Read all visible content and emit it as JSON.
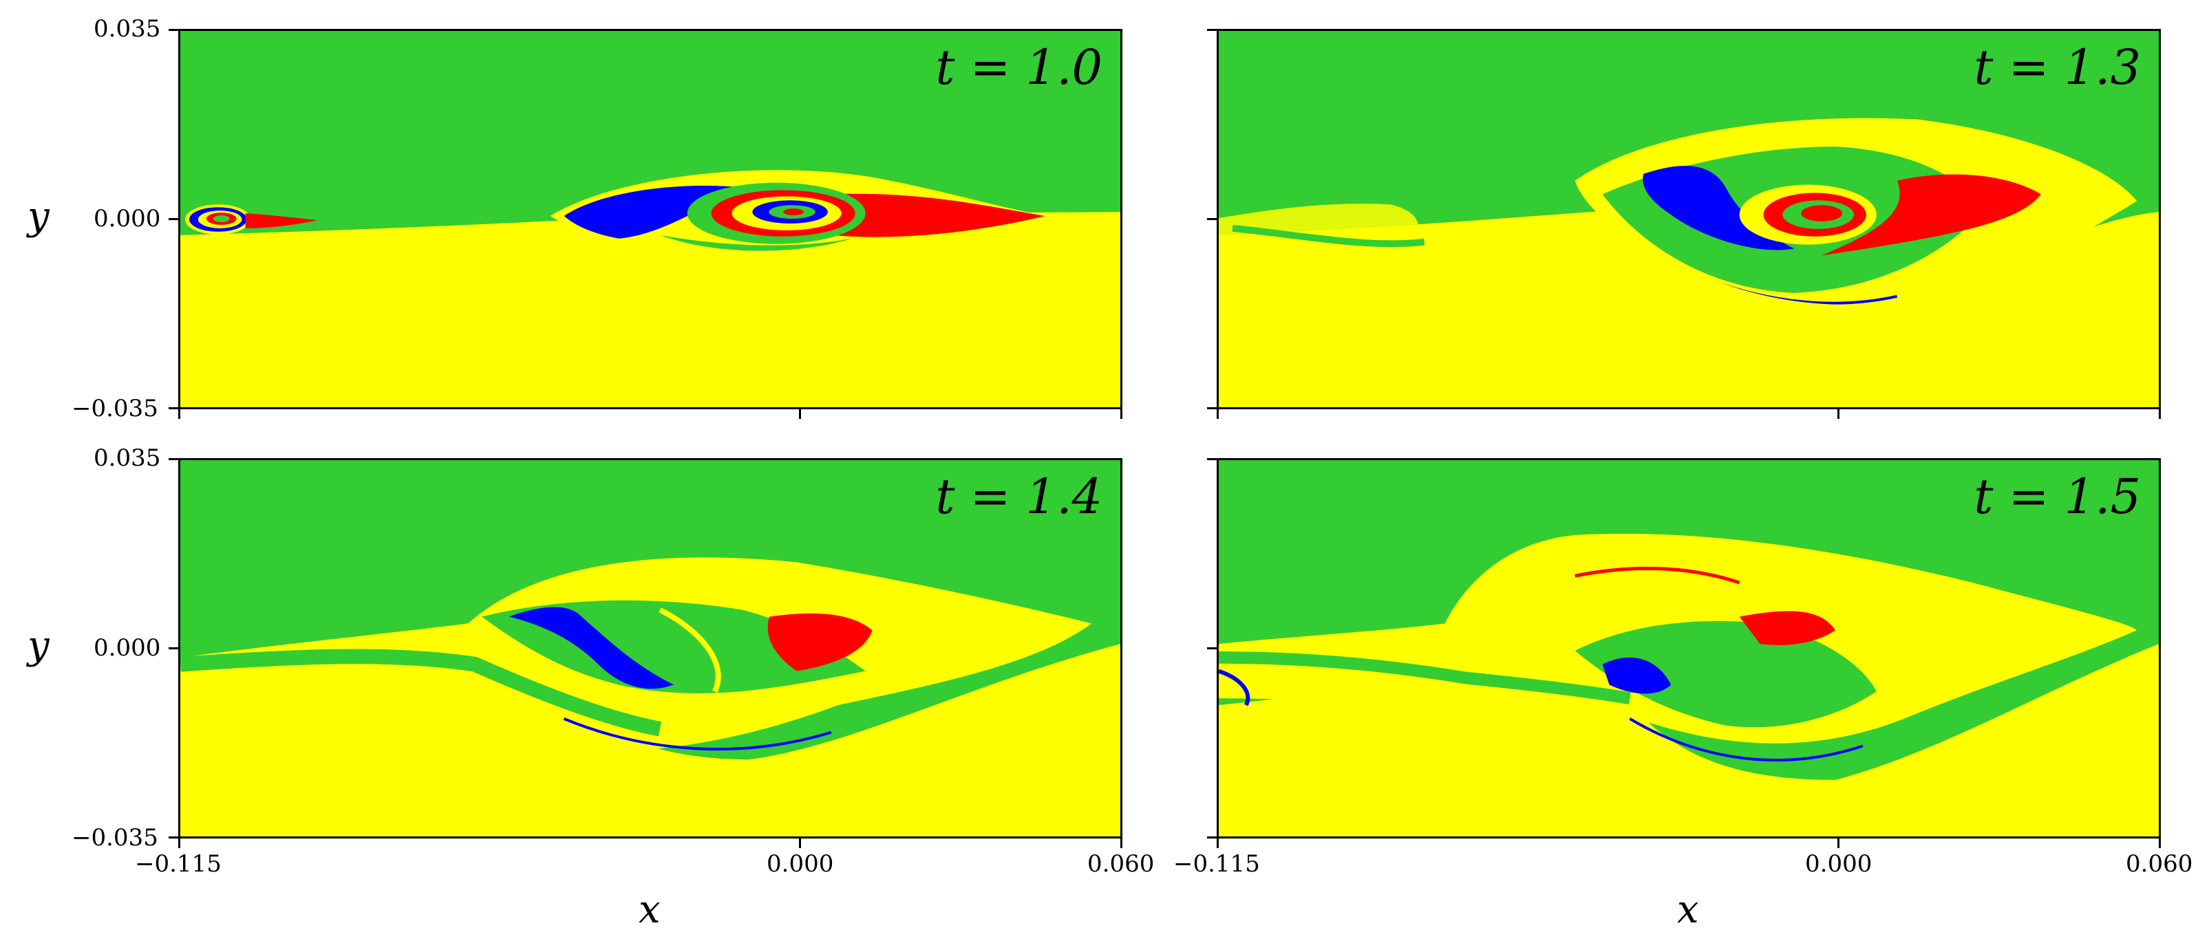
{
  "figure": {
    "panels": [
      {
        "time_label": "t = 1.0"
      },
      {
        "time_label": "t = 1.3"
      },
      {
        "time_label": "t = 1.4"
      },
      {
        "time_label": "t = 1.5"
      }
    ],
    "xlabel": "x",
    "ylabel": "y",
    "x_ticks": [
      "−0.115",
      "0.000",
      "0.060"
    ],
    "y_ticks": [
      "0.035",
      "0.000",
      "−0.035"
    ]
  },
  "colors": {
    "upper_fluid": "#33cc33",
    "lower_fluid": "#ffff00",
    "tracer_blue": "#0000ff",
    "tracer_red": "#ff0000"
  }
}
